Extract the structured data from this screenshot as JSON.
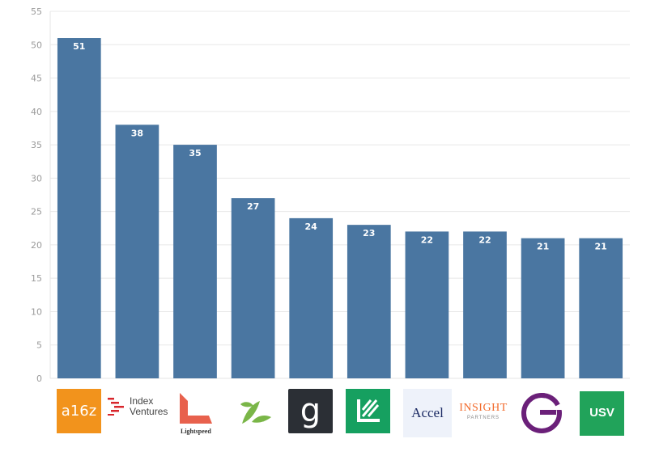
{
  "chart_data": {
    "type": "bar",
    "categories": [
      "a16z",
      "Index Ventures",
      "Lightspeed",
      "Sprout",
      "Greylock",
      "General Catalyst",
      "Accel",
      "Insight Partners",
      "Greycroft",
      "USV"
    ],
    "values": [
      51,
      38,
      35,
      27,
      24,
      23,
      22,
      22,
      21,
      21
    ],
    "ylim": [
      0,
      55
    ],
    "yticks": [
      0,
      5,
      10,
      15,
      20,
      25,
      30,
      35,
      40,
      45,
      50,
      55
    ],
    "grid": true,
    "legend": "none",
    "bar_color": "#4a76a1"
  },
  "logos": {
    "a16z": "a16z",
    "index_line1": "Index",
    "index_line2": "Ventures",
    "lightspeed": "Lightspeed",
    "greylock": "g",
    "accel": "Accel",
    "insight_line1": "INSIGHT",
    "insight_line2": "PARTNERS",
    "usv": "USV"
  },
  "colors": {
    "a16z_bg": "#f2931c",
    "index_red": "#d8262c",
    "lightspeed_red": "#e8614d",
    "sprout_green": "#7ab648",
    "greylock_bg": "#2b2f35",
    "gc_green": "#16a060",
    "accel_navy": "#1b2a63",
    "insight_orange": "#f26b2c",
    "greycroft_purple": "#6b2079",
    "usv_green": "#21a35a"
  }
}
